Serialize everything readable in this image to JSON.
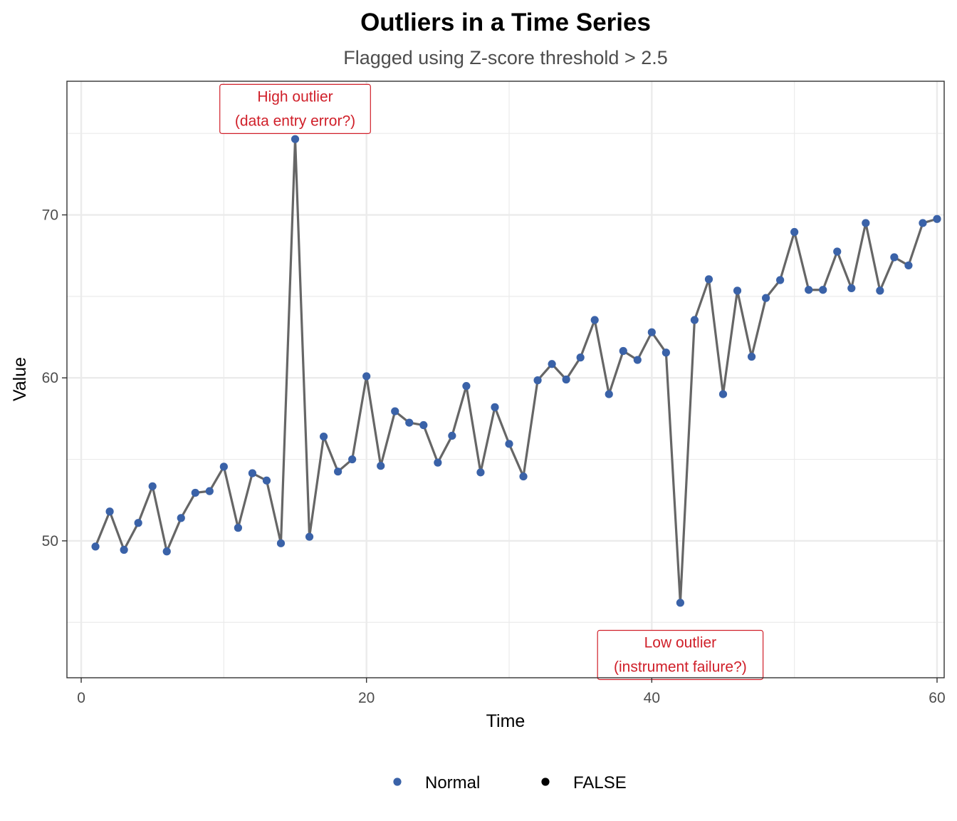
{
  "chart_data": {
    "type": "line",
    "title": "Outliers in a Time Series",
    "subtitle": "Flagged using Z-score threshold > 2.5",
    "xlabel": "Time",
    "ylabel": "Value",
    "xlim": [
      -1,
      60.5
    ],
    "ylim": [
      41.6,
      78.2
    ],
    "x_ticks": [
      0,
      20,
      40,
      60
    ],
    "x_tick_labels": [
      "0",
      "20",
      "40",
      "60"
    ],
    "y_ticks": [
      50,
      60,
      70
    ],
    "y_tick_labels": [
      "50",
      "60",
      "70"
    ],
    "y_minor_ticks": [
      45,
      55,
      65,
      75
    ],
    "x_minor_ticks": [
      10,
      30,
      50
    ],
    "grid": true,
    "legend_position": "bottom",
    "colors": {
      "line": "#666666",
      "normal_point": "#3a62a8",
      "outlier_point": "#000000",
      "annotation": "#d0202a",
      "grid": "#ebebeb",
      "panel_border": "#333333"
    },
    "x": [
      1,
      2,
      3,
      4,
      5,
      6,
      7,
      8,
      9,
      10,
      11,
      12,
      13,
      14,
      15,
      16,
      17,
      18,
      19,
      20,
      21,
      22,
      23,
      24,
      25,
      26,
      27,
      28,
      29,
      30,
      31,
      32,
      33,
      34,
      35,
      36,
      37,
      38,
      39,
      40,
      41,
      42,
      43,
      44,
      45,
      46,
      47,
      48,
      49,
      50,
      51,
      52,
      53,
      54,
      55,
      56,
      57,
      58,
      59,
      60
    ],
    "series": [
      {
        "name": "Value",
        "values": [
          49.65,
          51.8,
          49.45,
          51.1,
          53.35,
          49.35,
          51.4,
          52.95,
          53.05,
          54.55,
          50.8,
          54.15,
          53.7,
          49.85,
          74.65,
          50.25,
          56.4,
          54.25,
          55.0,
          60.1,
          54.6,
          57.95,
          57.25,
          57.1,
          54.8,
          56.45,
          59.5,
          54.2,
          58.2,
          55.95,
          53.95,
          59.85,
          60.85,
          59.9,
          61.25,
          63.55,
          59.0,
          61.65,
          61.1,
          62.8,
          61.55,
          46.2,
          63.55,
          66.05,
          59.0,
          65.35,
          61.3,
          64.9,
          66.0,
          68.95,
          65.4,
          65.4,
          67.75,
          65.5,
          69.5,
          65.35,
          67.4,
          66.9,
          69.5,
          69.75
        ]
      }
    ],
    "legend": [
      {
        "label": "Normal",
        "color": "#3a62a8"
      },
      {
        "label": "FALSE",
        "color": "#000000"
      }
    ],
    "annotations": [
      {
        "lines": [
          "High outlier",
          "(data entry error?)"
        ],
        "x": 15,
        "y": 76.5
      },
      {
        "lines": [
          "Low outlier",
          "(instrument failure?)"
        ],
        "x": 42,
        "y": 43.0
      }
    ]
  }
}
